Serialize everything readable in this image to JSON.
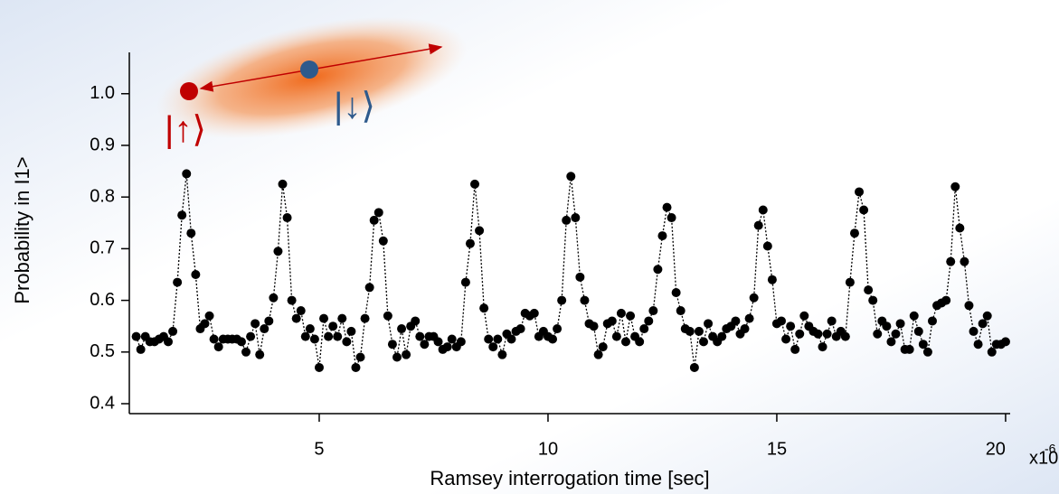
{
  "chart_data": {
    "type": "scatter",
    "xlabel": "Ramsey interrogation time [sec]",
    "ylabel": "Probability in I1>",
    "x_multiplier": "x10",
    "x_multiplier_exponent": "-6",
    "annotations": [
      "|↑⟩",
      "|↓⟩"
    ],
    "x": [
      1.0,
      1.1,
      1.2,
      1.3,
      1.4,
      1.5,
      1.6,
      1.7,
      1.8,
      1.9,
      2.0,
      2.1,
      2.2,
      2.3,
      2.4,
      2.5,
      2.6,
      2.7,
      2.8,
      2.9,
      3.0,
      3.1,
      3.2,
      3.3,
      3.4,
      3.5,
      3.6,
      3.7,
      3.8,
      3.9,
      4.0,
      4.1,
      4.2,
      4.3,
      4.4,
      4.5,
      4.6,
      4.7,
      4.8,
      4.9,
      5.0,
      5.1,
      5.2,
      5.3,
      5.4,
      5.5,
      5.6,
      5.7,
      5.8,
      5.9,
      6.0,
      6.1,
      6.2,
      6.3,
      6.4,
      6.5,
      6.6,
      6.7,
      6.8,
      6.9,
      7.0,
      7.1,
      7.2,
      7.3,
      7.4,
      7.5,
      7.6,
      7.7,
      7.8,
      7.9,
      8.0,
      8.1,
      8.2,
      8.3,
      8.4,
      8.5,
      8.6,
      8.7,
      8.8,
      8.9,
      9.0,
      9.1,
      9.2,
      9.3,
      9.4,
      9.5,
      9.6,
      9.7,
      9.8,
      9.9,
      10.0,
      10.1,
      10.2,
      10.3,
      10.4,
      10.5,
      10.6,
      10.7,
      10.8,
      10.9,
      11.0,
      11.1,
      11.2,
      11.3,
      11.4,
      11.5,
      11.6,
      11.7,
      11.8,
      11.9,
      12.0,
      12.1,
      12.2,
      12.3,
      12.4,
      12.5,
      12.6,
      12.7,
      12.8,
      12.9,
      13.0,
      13.1,
      13.2,
      13.3,
      13.4,
      13.5,
      13.6,
      13.7,
      13.8,
      13.9,
      14.0,
      14.1,
      14.2,
      14.3,
      14.4,
      14.5,
      14.6,
      14.7,
      14.8,
      14.9,
      15.0,
      15.1,
      15.2,
      15.3,
      15.4,
      15.5,
      15.6,
      15.7,
      15.8,
      15.9,
      16.0,
      16.1,
      16.2,
      16.3,
      16.4,
      16.5,
      16.6,
      16.7,
      16.8,
      16.9,
      17.0,
      17.1,
      17.2,
      17.3,
      17.4,
      17.5,
      17.6,
      17.7,
      17.8,
      17.9,
      18.0,
      18.1,
      18.2,
      18.3,
      18.4,
      18.5,
      18.6,
      18.7,
      18.8,
      18.9,
      19.0,
      19.1,
      19.2,
      19.3,
      19.4,
      19.5,
      19.6,
      19.7,
      19.8,
      19.9,
      20.0
    ],
    "values": [
      0.53,
      0.505,
      0.53,
      0.52,
      0.52,
      0.525,
      0.53,
      0.52,
      0.54,
      0.635,
      0.765,
      0.845,
      0.73,
      0.65,
      0.545,
      0.555,
      0.57,
      0.525,
      0.51,
      0.525,
      0.525,
      0.525,
      0.525,
      0.52,
      0.5,
      0.53,
      0.555,
      0.495,
      0.545,
      0.56,
      0.605,
      0.695,
      0.825,
      0.76,
      0.6,
      0.565,
      0.58,
      0.53,
      0.545,
      0.525,
      0.47,
      0.565,
      0.53,
      0.55,
      0.53,
      0.565,
      0.52,
      0.54,
      0.47,
      0.49,
      0.565,
      0.625,
      0.755,
      0.77,
      0.715,
      0.57,
      0.515,
      0.49,
      0.545,
      0.495,
      0.55,
      0.56,
      0.53,
      0.515,
      0.53,
      0.53,
      0.52,
      0.505,
      0.51,
      0.525,
      0.51,
      0.52,
      0.635,
      0.71,
      0.825,
      0.735,
      0.585,
      0.525,
      0.51,
      0.525,
      0.495,
      0.535,
      0.525,
      0.54,
      0.545,
      0.575,
      0.57,
      0.575,
      0.53,
      0.54,
      0.53,
      0.525,
      0.545,
      0.6,
      0.755,
      0.84,
      0.76,
      0.645,
      0.6,
      0.555,
      0.55,
      0.495,
      0.51,
      0.555,
      0.56,
      0.53,
      0.575,
      0.52,
      0.57,
      0.53,
      0.52,
      0.545,
      0.56,
      0.58,
      0.66,
      0.725,
      0.78,
      0.76,
      0.615,
      0.58,
      0.545,
      0.54,
      0.47,
      0.54,
      0.52,
      0.555,
      0.53,
      0.52,
      0.53,
      0.545,
      0.55,
      0.56,
      0.535,
      0.545,
      0.565,
      0.605,
      0.745,
      0.775,
      0.705,
      0.64,
      0.555,
      0.56,
      0.525,
      0.55,
      0.505,
      0.535,
      0.57,
      0.55,
      0.54,
      0.535,
      0.51,
      0.535,
      0.56,
      0.53,
      0.54,
      0.53,
      0.635,
      0.73,
      0.81,
      0.775,
      0.62,
      0.6,
      0.535,
      0.56,
      0.55,
      0.52,
      0.535,
      0.555,
      0.505,
      0.505,
      0.57,
      0.54,
      0.515,
      0.5,
      0.56,
      0.59,
      0.595,
      0.6,
      0.675,
      0.82,
      0.74,
      0.675,
      0.59,
      0.54,
      0.515,
      0.555,
      0.57,
      0.5,
      0.515,
      0.515,
      0.52
    ],
    "color": "#000000",
    "xlim": [
      0.85,
      20.1
    ],
    "xticks": [
      5,
      10,
      15,
      20
    ],
    "ylim": [
      0.4,
      1.08
    ],
    "yticks": [
      0.4,
      0.5,
      0.6,
      0.7,
      0.8,
      0.9,
      {
        "value": 1.0,
        "label": "1.0"
      }
    ]
  }
}
